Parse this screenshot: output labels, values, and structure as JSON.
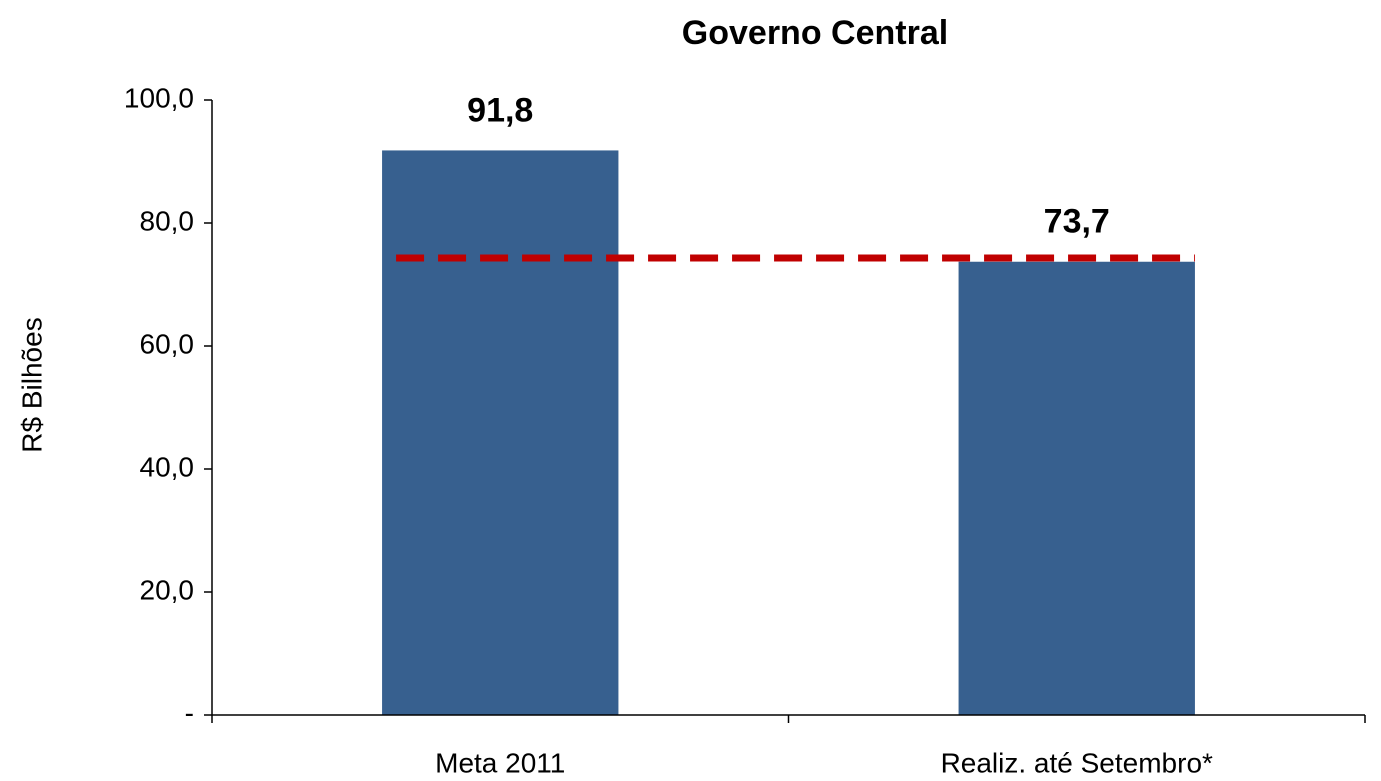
{
  "chart_data": {
    "type": "bar",
    "title": "Governo Central",
    "y_label": "R$ Bilhões",
    "categories": [
      "Meta 2011",
      "Realiz. até Setembro*"
    ],
    "values": [
      91.8,
      73.7
    ],
    "value_labels": [
      "91,8",
      "73,7"
    ],
    "color": "#37608f",
    "ylim": [
      0,
      100
    ],
    "yticks": [
      {
        "value": 0,
        "label": "-"
      },
      {
        "value": 20,
        "label": "20,0"
      },
      {
        "value": 40,
        "label": "40,0"
      },
      {
        "value": 60,
        "label": "60,0"
      },
      {
        "value": 80,
        "label": "80,0"
      },
      {
        "value": 100,
        "label": "100,0"
      }
    ],
    "reference_line": {
      "value": 74.3,
      "color": "#c00000"
    },
    "grid": false
  }
}
